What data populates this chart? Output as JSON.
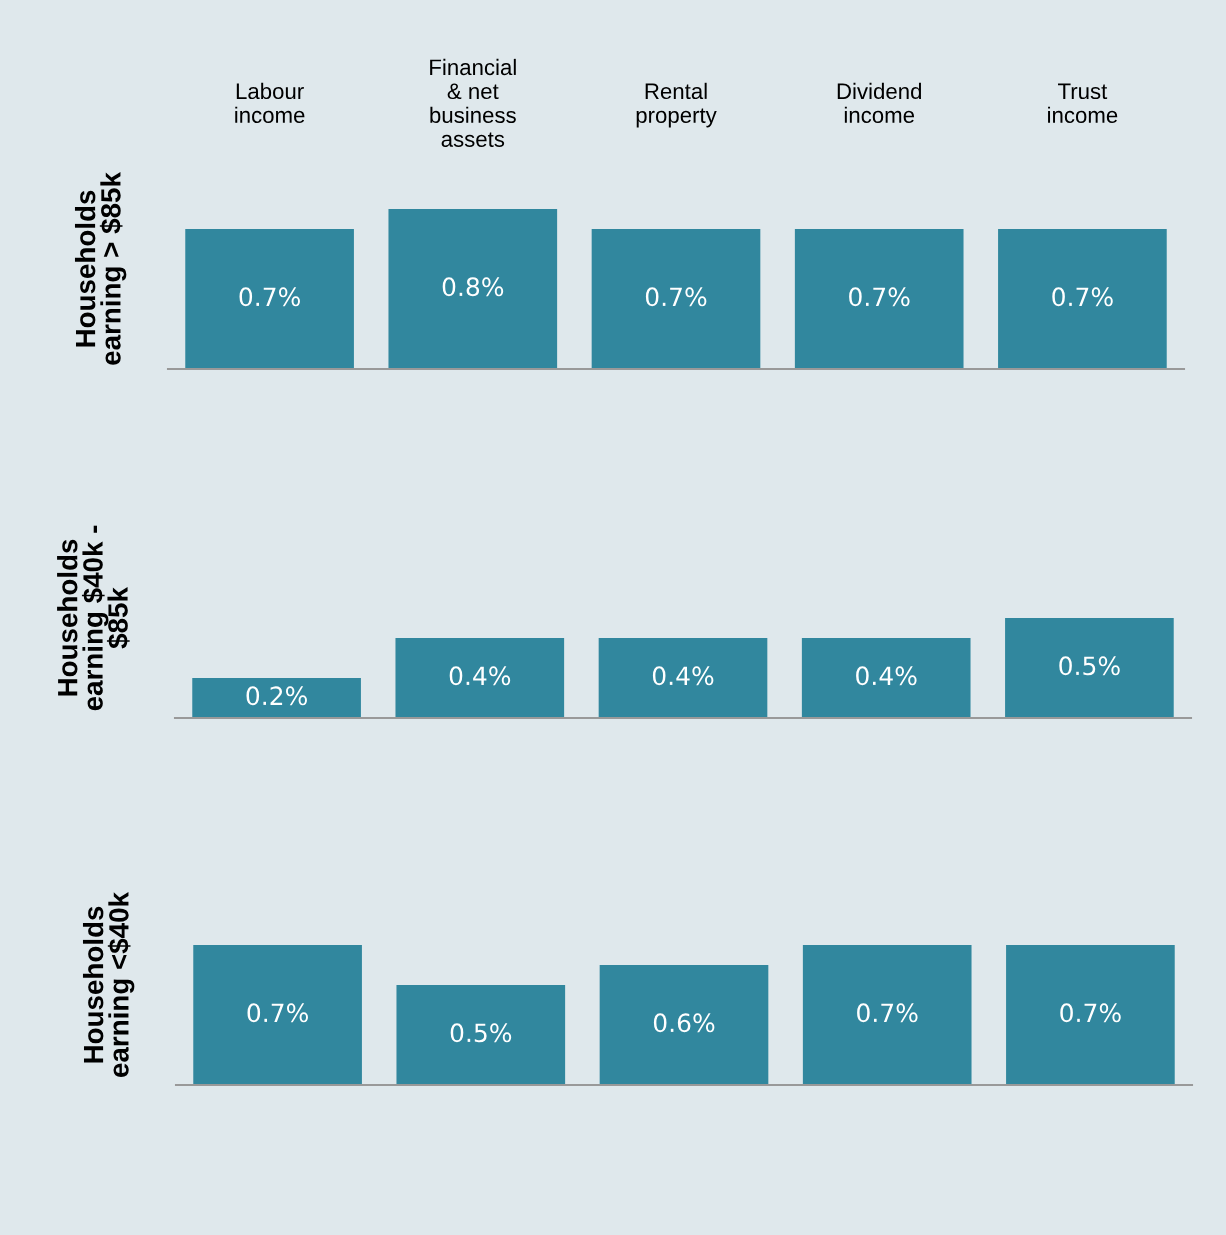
{
  "chart_data": [
    {
      "type": "bar",
      "ylabel": "Households\nearning > $85k",
      "categories": [
        "Labour\nincome",
        "Financial\n& net\nbusiness\nassets",
        "Rental\nproperty",
        "Dividend\nincome",
        "Trust\nincome"
      ],
      "tick_labels": "x",
      "series": [
        {
          "color": "#31879e",
          "values": [
            0.7,
            0.8,
            0.7,
            0.7,
            0.7
          ],
          "value_labels": [
            "0.7%",
            "0.8%",
            "0.7%",
            "0.7%",
            "0.7%"
          ]
        }
      ]
    },
    {
      "type": "bar",
      "ylabel": "Households\nearning $40k -\n$85k",
      "categories": [
        null,
        null,
        null,
        null,
        null
      ],
      "tick_labels": false,
      "series": [
        {
          "color": "#31879e",
          "values": [
            0.2,
            0.4,
            0.4,
            0.4,
            0.5
          ],
          "value_labels": [
            "0.2%",
            "0.4%",
            "0.4%",
            "0.4%",
            "0.5%"
          ]
        }
      ]
    },
    {
      "type": "bar",
      "ylabel": "Households\nearning <$40k",
      "categories": [
        null,
        null,
        null,
        null,
        null
      ],
      "tick_labels": false,
      "series": [
        {
          "color": "#31879e",
          "values": [
            0.7,
            0.5,
            0.6,
            0.7,
            0.7
          ],
          "value_labels": [
            "0.7%",
            "0.5%",
            "0.6%",
            "0.7%",
            "0.7%"
          ]
        }
      ]
    }
  ]
}
